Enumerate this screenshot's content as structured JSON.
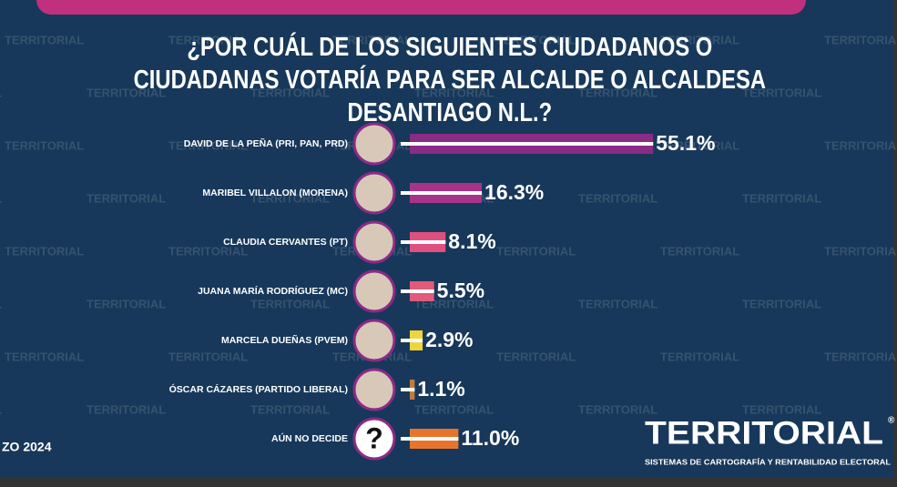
{
  "chart_data": {
    "type": "bar",
    "title": "¿POR CUÁL DE LOS SIGUIENTES CIUDADANOS O\nCIUDADANAS VOTARÍA PARA SER ALCALDE O ALCALDESA DESANTIAGO N.L.?",
    "categories": [
      "DAVID DE LA PEÑA (PRI, PAN, PRD)",
      "MARIBEL VILLALON (MORENA)",
      "CLAUDIA CERVANTES (PT)",
      "JUANA MARÍA RODRÍGUEZ (MC)",
      "MARCELA DUEÑAS (PVEM)",
      "ÓSCAR CÁZARES (PARTIDO LIBERAL)",
      "AÚN NO DECIDE"
    ],
    "values": [
      55.1,
      16.3,
      8.1,
      5.5,
      2.9,
      1.1,
      11.0
    ],
    "value_labels": [
      "55.1%",
      "16.3%",
      "8.1%",
      "5.5%",
      "2.9%",
      "1.1%",
      "11.0%"
    ],
    "colors": [
      "#8a2b86",
      "#a8348a",
      "#e0507e",
      "#e05a7c",
      "#f0d43c",
      "#c47a3c",
      "#e8742c"
    ]
  },
  "unknown_icon": "?",
  "date_fragment": "ZO 2024",
  "watermark": "TERRITORIAL",
  "logo": {
    "name": "TERRITORIAL",
    "mark": "®",
    "tagline": "SISTEMAS DE CARTOGRAFÍA Y RENTABILIDAD ELECTORAL"
  }
}
